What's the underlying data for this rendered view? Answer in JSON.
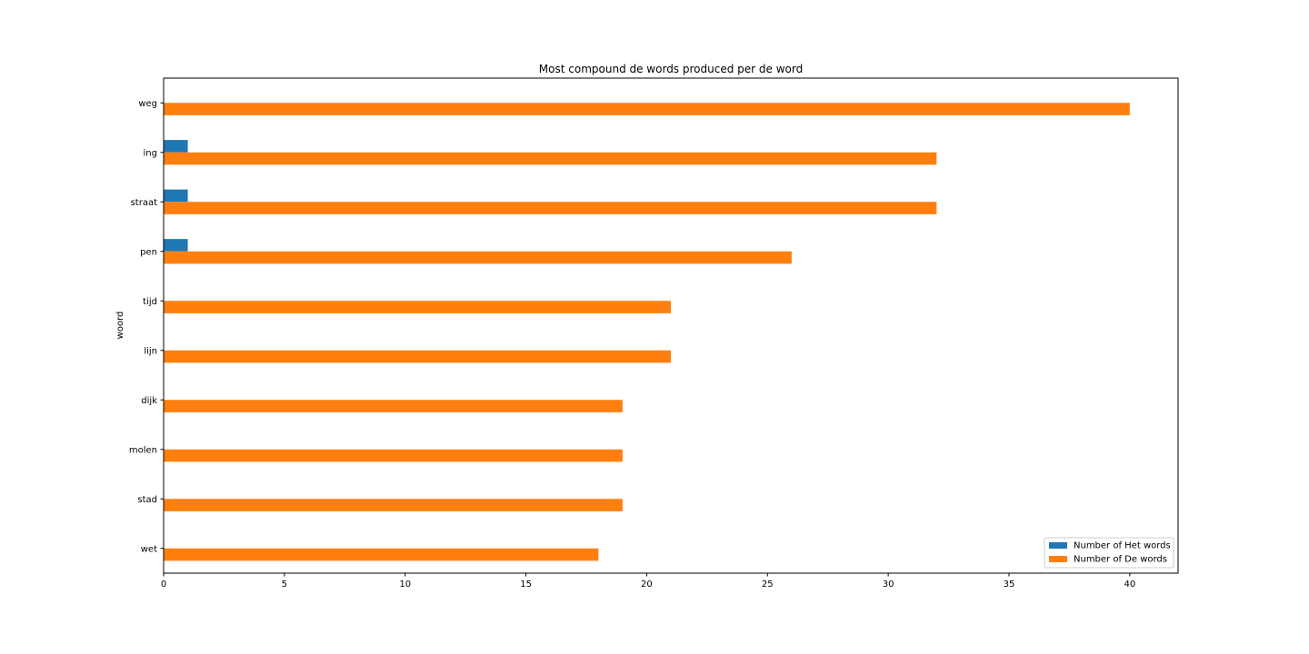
{
  "chart_data": {
    "type": "bar",
    "orientation": "horizontal",
    "title": "Most compound de words produced per de word",
    "xlabel": "",
    "ylabel": "woord",
    "categories": [
      "weg",
      "ing",
      "straat",
      "pen",
      "tijd",
      "lijn",
      "dijk",
      "molen",
      "stad",
      "wet"
    ],
    "series": [
      {
        "name": "Number of Het words",
        "color": "#1f77b4",
        "values": [
          0,
          1,
          1,
          1,
          0,
          0,
          0,
          0,
          0,
          0
        ]
      },
      {
        "name": "Number of De words",
        "color": "#ff7f0e",
        "values": [
          40,
          32,
          32,
          26,
          21,
          21,
          19,
          19,
          19,
          18
        ]
      }
    ],
    "xlim": [
      0,
      42
    ],
    "xticks": [
      0,
      5,
      10,
      15,
      20,
      25,
      30,
      35,
      40
    ],
    "grid": false,
    "legend_position": "lower-right"
  }
}
